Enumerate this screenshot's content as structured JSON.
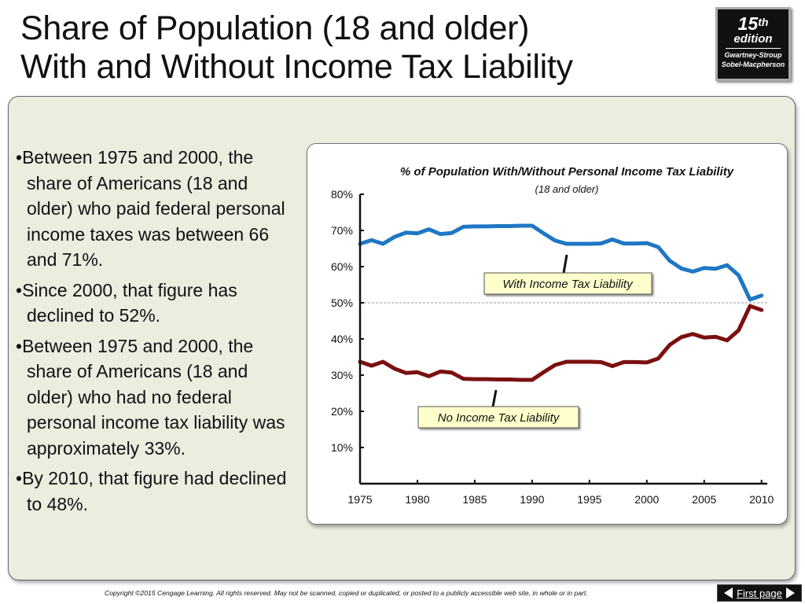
{
  "slide": {
    "title_line1": "Share of Population (18 and older)",
    "title_line2": "With and Without Income Tax Liability"
  },
  "edition_badge": {
    "number": "15",
    "suffix": "th",
    "word": "edition",
    "authors_line1": "Gwartney-Stroup",
    "authors_line2": "Sobel-Macpherson"
  },
  "bullets": [
    "Between 1975 and 2000, the share of Americans (18 and older) who paid federal personal income taxes was between 66 and 71%.",
    "Since 2000, that figure has declined to 52%.",
    "Between 1975 and 2000, the share of Americans (18 and older) who had no federal personal income tax liability was approximately 33%.",
    "By 2010, that figure had declined to 48%."
  ],
  "chart_data": {
    "type": "line",
    "title": "% of Population With/Without Personal Income Tax Liability",
    "subtitle": "(18 and older)",
    "xlabel": "",
    "ylabel": "",
    "x_ticks": [
      "1975",
      "1980",
      "1985",
      "1990",
      "1995",
      "2000",
      "2005",
      "2010"
    ],
    "y_ticks": [
      "80%",
      "70%",
      "60%",
      "50%",
      "40%",
      "30%",
      "20%",
      "10%"
    ],
    "xlim": [
      1975,
      2010.5
    ],
    "ylim": [
      0,
      80
    ],
    "reference_line": 50,
    "x": [
      1975,
      1976,
      1977,
      1978,
      1979,
      1980,
      1981,
      1982,
      1983,
      1984,
      1985,
      1986,
      1987,
      1988,
      1989,
      1990,
      1991,
      1992,
      1993,
      1994,
      1995,
      1996,
      1997,
      1998,
      1999,
      2000,
      2001,
      2002,
      2003,
      2004,
      2005,
      2006,
      2007,
      2008,
      2009,
      2010
    ],
    "series": [
      {
        "name": "With Income Tax Liability",
        "color": "#1f77c4",
        "values": [
          66.3,
          67.3,
          66.3,
          68.2,
          69.4,
          69.2,
          70.3,
          69.0,
          69.3,
          71.0,
          71.1,
          71.1,
          71.2,
          71.2,
          71.3,
          71.3,
          69.2,
          67.2,
          66.3,
          66.3,
          66.3,
          66.4,
          67.5,
          66.4,
          66.4,
          66.5,
          65.4,
          61.6,
          59.5,
          58.6,
          59.6,
          59.4,
          60.4,
          57.6,
          50.9,
          52.0
        ]
      },
      {
        "name": "No Income Tax Liability",
        "color": "#7b1010",
        "values": [
          33.7,
          32.6,
          33.7,
          31.8,
          30.6,
          30.8,
          29.7,
          31.0,
          30.7,
          29.0,
          28.9,
          28.9,
          28.8,
          28.8,
          28.7,
          28.7,
          30.8,
          32.8,
          33.7,
          33.7,
          33.7,
          33.6,
          32.5,
          33.6,
          33.6,
          33.5,
          34.6,
          38.4,
          40.5,
          41.4,
          40.4,
          40.6,
          39.6,
          42.4,
          49.1,
          48.0
        ]
      }
    ]
  },
  "footer": {
    "copyright": "Copyright ©2015 Cengage Learning. All rights reserved. May not be scanned, copied or duplicated, or posted to a publicly accessible web site, in whole or in part.",
    "nav_label": "First page"
  }
}
